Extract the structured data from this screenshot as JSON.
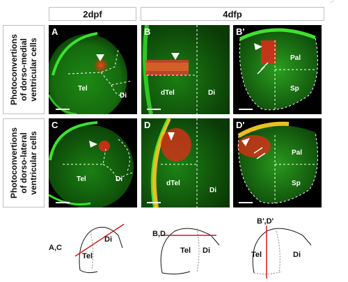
{
  "headers": {
    "col1": "2dpf",
    "col2": "4dfp"
  },
  "rows": {
    "row1": "Photoconvertions\nof dorso-medial\nventricular cells",
    "row2": "Photoconvertions\nof dorso-lateral\nventricular cells"
  },
  "panels": {
    "A": {
      "label": "A",
      "regions": [
        "Tel",
        "Di"
      ]
    },
    "B": {
      "label": "B",
      "regions": [
        "dTel",
        "Di"
      ]
    },
    "B2": {
      "label": "B'",
      "regions": [
        "Pal",
        "Sp"
      ]
    },
    "C": {
      "label": "C",
      "regions": [
        "Tel",
        "Di"
      ]
    },
    "D": {
      "label": "D",
      "regions": [
        "dTel",
        "Di"
      ]
    },
    "D2": {
      "label": "D'",
      "regions": [
        "Pal",
        "Sp"
      ]
    }
  },
  "schematics": [
    {
      "cut_label": "A,C",
      "regions": [
        "Tel",
        "Di"
      ]
    },
    {
      "cut_label": "B,D",
      "regions": [
        "Tel",
        "Di"
      ]
    },
    {
      "cut_label": "B',D'",
      "regions": [
        "Tel",
        "Di"
      ]
    }
  ],
  "colors": {
    "tissue": "#22c41a",
    "photoconverted": "#e03010",
    "cut_line": "#d01818"
  }
}
